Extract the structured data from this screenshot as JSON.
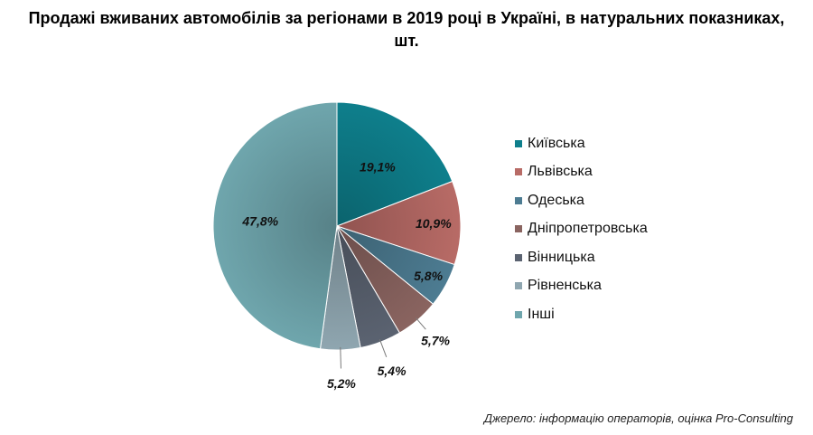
{
  "chart_data": {
    "type": "pie",
    "title_line1": "Продажі вживаних автомобілів за регіонами в 2019 році в Україні, в натуральних показниках,",
    "title_line2": "шт.",
    "categories": [
      "Київська",
      "Львівська",
      "Одеська",
      "Дніпропетровська",
      "Вінницька",
      "Рівненська",
      "Інші"
    ],
    "values": [
      19.1,
      10.9,
      5.8,
      5.7,
      5.4,
      5.2,
      47.8
    ],
    "labels": [
      "19,1%",
      "10,9%",
      "5,8%",
      "5,7%",
      "5,4%",
      "5,2%",
      "47,8%"
    ],
    "colors": [
      "#0e7f8c",
      "#b86b66",
      "#4d7c92",
      "#8a6460",
      "#5b6371",
      "#8fa6b0",
      "#6fa6ad"
    ],
    "legend_position": "right",
    "source": "Джерело: інформацію операторів, оцінка Pro-Consulting"
  }
}
